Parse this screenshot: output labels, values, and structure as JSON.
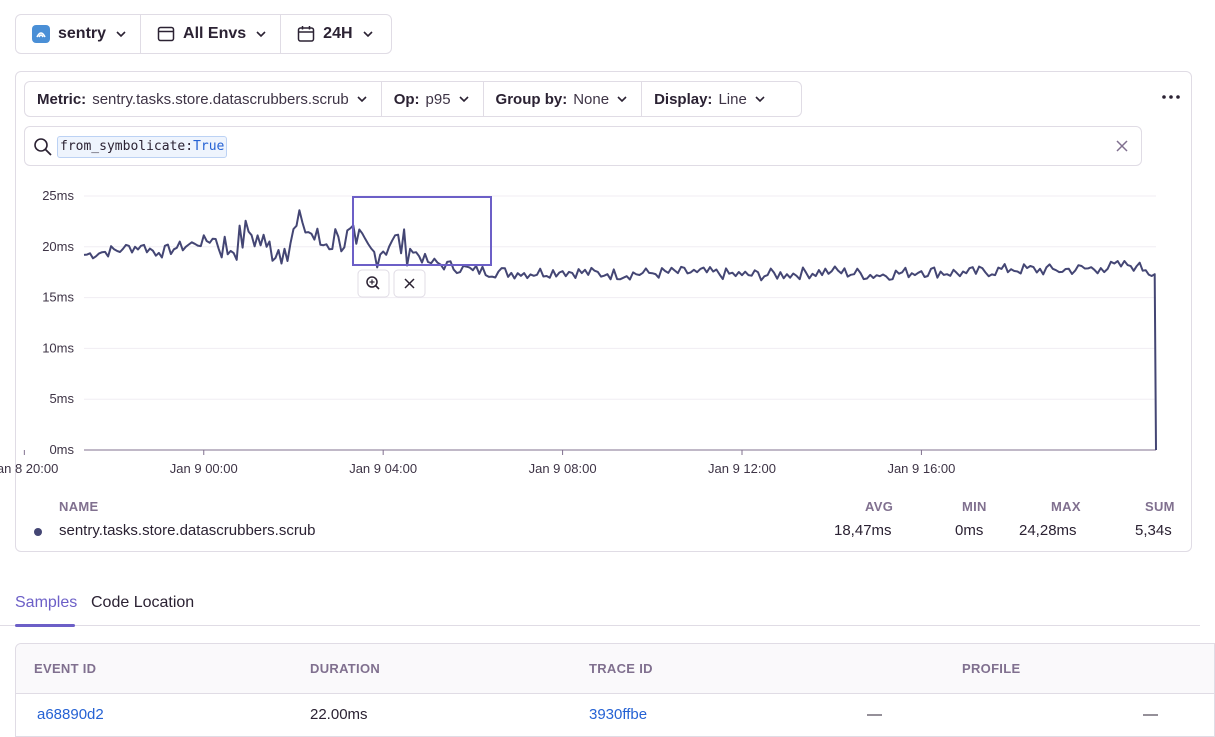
{
  "topbar": {
    "project": "sentry",
    "environment": "All Envs",
    "period": "24H"
  },
  "query": {
    "metric_label": "Metric:",
    "metric_value": "sentry.tasks.store.datascrubbers.scrub",
    "op_label": "Op:",
    "op_value": "p95",
    "groupby_label": "Group by:",
    "groupby_value": "None",
    "display_label": "Display:",
    "display_value": "Line"
  },
  "search": {
    "key": "from_symbolicate:",
    "value": "True"
  },
  "chart_data": {
    "type": "line",
    "title": "",
    "xlabel": "",
    "ylabel": "",
    "y_ticks": [
      "25ms",
      "20ms",
      "15ms",
      "10ms",
      "5ms",
      "0ms"
    ],
    "ylim": [
      0,
      25
    ],
    "x_ticks": [
      "Jan 8 20:00",
      "Jan 9 00:00",
      "Jan 9 04:00",
      "Jan 9 08:00",
      "Jan 9 12:00",
      "Jan 9 16:00"
    ],
    "x_range_hours": [
      -2.67,
      21.23
    ],
    "series": [
      {
        "name": "sentry.tasks.store.datascrubbers.scrub",
        "color": "#444674",
        "x_hours": [
          -2.67,
          -2.2,
          -1.8,
          -1.4,
          -1.0,
          -0.6,
          -0.2,
          0.2,
          0.6,
          1.0,
          1.4,
          1.8,
          2.2,
          2.6,
          3.0,
          3.4,
          3.8,
          4.2,
          4.6,
          5.0,
          6.0,
          7.0,
          8.0,
          9.0,
          10.0,
          11.0,
          12.0,
          13.0,
          14.0,
          15.0,
          16.0,
          17.0,
          18.0,
          19.0,
          20.0,
          20.6,
          20.8,
          21.0,
          21.2,
          21.23
        ],
        "values": [
          19.2,
          19.5,
          19.8,
          20.1,
          19.4,
          19.9,
          20.3,
          20.8,
          19.6,
          21.5,
          20.0,
          19.8,
          22.4,
          20.2,
          21.0,
          20.3,
          19.5,
          20.6,
          19.8,
          18.5,
          17.7,
          17.4,
          17.6,
          17.3,
          17.4,
          17.5,
          17.2,
          17.3,
          17.6,
          17.2,
          17.6,
          17.4,
          17.8,
          17.7,
          17.9,
          18.2,
          18.1,
          17.7,
          17.3,
          0
        ]
      }
    ],
    "grid": true,
    "legend": "bottom"
  },
  "selection": {
    "zoom_icon": "zoom-in-icon",
    "close_icon": "close-icon"
  },
  "legend": {
    "headers": [
      "NAME",
      "AVG",
      "MIN",
      "MAX",
      "SUM"
    ],
    "row": {
      "name": "sentry.tasks.store.datascrubbers.scrub",
      "avg": "18,47ms",
      "min": "0ms",
      "max": "24,28ms",
      "sum": "5,34s"
    }
  },
  "tabs": [
    {
      "label": "Samples",
      "active": true
    },
    {
      "label": "Code Location",
      "active": false
    }
  ],
  "table": {
    "columns": [
      "EVENT ID",
      "DURATION",
      "TRACE ID",
      "PROFILE"
    ],
    "rows": [
      {
        "event_id": "a68890d2",
        "duration": "22.00ms",
        "trace_id": "3930ffbe",
        "profile": "—",
        "extra": "—"
      }
    ]
  },
  "colors": {
    "accent": "#6c5fc7",
    "line": "#444674",
    "link": "#2562d4",
    "border": "#e0dce5"
  }
}
